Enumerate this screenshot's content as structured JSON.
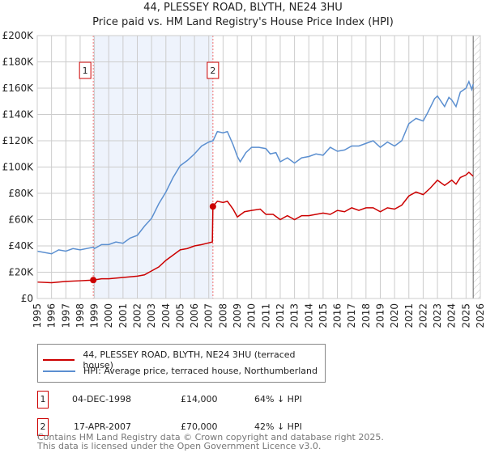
{
  "title": "44, PLESSEY ROAD, BLYTH, NE24 3HU",
  "subtitle": "Price paid vs. HM Land Registry's House Price Index (HPI)",
  "chart_data": {
    "type": "line",
    "xlim": [
      1995,
      2026
    ],
    "ylim": [
      0,
      200000
    ],
    "yticks": [
      0,
      20000,
      40000,
      60000,
      80000,
      100000,
      120000,
      140000,
      160000,
      180000,
      200000
    ],
    "ytick_labels": [
      "£0",
      "£20K",
      "£40K",
      "£60K",
      "£80K",
      "£100K",
      "£120K",
      "£140K",
      "£160K",
      "£180K",
      "£200K"
    ],
    "xticks": [
      1995,
      1996,
      1997,
      1998,
      1999,
      2000,
      2001,
      2002,
      2003,
      2004,
      2005,
      2006,
      2007,
      2008,
      2009,
      2010,
      2011,
      2012,
      2013,
      2014,
      2015,
      2016,
      2017,
      2018,
      2019,
      2020,
      2021,
      2022,
      2023,
      2024,
      2025,
      2026
    ],
    "grid": true,
    "shaded_period": [
      1998.92,
      2007.29
    ],
    "forecast_hatch_from": 2025.5,
    "colors": {
      "property": "#cc0000",
      "hpi": "#5b8fd0",
      "shade": "#eef3fc",
      "marker_box": "#cc0000"
    },
    "series": [
      {
        "name": "44, PLESSEY ROAD, BLYTH, NE24 3HU (terraced house)",
        "color": "#cc0000",
        "points": [
          [
            1995,
            12500
          ],
          [
            1996,
            12000
          ],
          [
            1997,
            13000
          ],
          [
            1998,
            13500
          ],
          [
            1998.92,
            14000
          ],
          [
            1999.5,
            15000
          ],
          [
            2000,
            15000
          ],
          [
            2001,
            16000
          ],
          [
            2002,
            17000
          ],
          [
            2002.5,
            18000
          ],
          [
            2003,
            21000
          ],
          [
            2003.5,
            24000
          ],
          [
            2004,
            29000
          ],
          [
            2004.5,
            33000
          ],
          [
            2005,
            37000
          ],
          [
            2005.5,
            38000
          ],
          [
            2006,
            40000
          ],
          [
            2006.5,
            41000
          ],
          [
            2007.25,
            43000
          ],
          [
            2007.29,
            70000
          ],
          [
            2007.6,
            74000
          ],
          [
            2008,
            73000
          ],
          [
            2008.3,
            74000
          ],
          [
            2008.7,
            68000
          ],
          [
            2009,
            62000
          ],
          [
            2009.5,
            66000
          ],
          [
            2010,
            67000
          ],
          [
            2010.6,
            68000
          ],
          [
            2011,
            64000
          ],
          [
            2011.5,
            64000
          ],
          [
            2012,
            60000
          ],
          [
            2012.5,
            63000
          ],
          [
            2013,
            60000
          ],
          [
            2013.5,
            63000
          ],
          [
            2014,
            63000
          ],
          [
            2015,
            65000
          ],
          [
            2015.5,
            64000
          ],
          [
            2016,
            67000
          ],
          [
            2016.5,
            66000
          ],
          [
            2017,
            69000
          ],
          [
            2017.5,
            67000
          ],
          [
            2018,
            69000
          ],
          [
            2018.5,
            69000
          ],
          [
            2019,
            66000
          ],
          [
            2019.5,
            69000
          ],
          [
            2020,
            68000
          ],
          [
            2020.5,
            71000
          ],
          [
            2021,
            78000
          ],
          [
            2021.5,
            81000
          ],
          [
            2022,
            79000
          ],
          [
            2022.5,
            84000
          ],
          [
            2023,
            90000
          ],
          [
            2023.5,
            86000
          ],
          [
            2024,
            90000
          ],
          [
            2024.3,
            87000
          ],
          [
            2024.6,
            92000
          ],
          [
            2025,
            94000
          ],
          [
            2025.2,
            96000
          ],
          [
            2025.5,
            93000
          ]
        ]
      },
      {
        "name": "HPI: Average price, terraced house, Northumberland",
        "color": "#5b8fd0",
        "points": [
          [
            1995,
            36000
          ],
          [
            1996,
            34000
          ],
          [
            1996.5,
            37000
          ],
          [
            1997,
            36000
          ],
          [
            1997.5,
            38000
          ],
          [
            1998,
            37000
          ],
          [
            1998.9,
            39000
          ],
          [
            1999,
            38000
          ],
          [
            1999.5,
            41000
          ],
          [
            2000,
            41000
          ],
          [
            2000.5,
            43000
          ],
          [
            2001,
            42000
          ],
          [
            2001.5,
            46000
          ],
          [
            2002,
            48000
          ],
          [
            2002.5,
            55000
          ],
          [
            2003,
            61000
          ],
          [
            2003.5,
            72000
          ],
          [
            2004,
            81000
          ],
          [
            2004.5,
            92000
          ],
          [
            2005,
            101000
          ],
          [
            2005.5,
            105000
          ],
          [
            2006,
            110000
          ],
          [
            2006.5,
            116000
          ],
          [
            2007,
            119000
          ],
          [
            2007.3,
            120000
          ],
          [
            2007.6,
            127000
          ],
          [
            2008,
            126000
          ],
          [
            2008.3,
            127000
          ],
          [
            2008.7,
            117000
          ],
          [
            2009,
            108000
          ],
          [
            2009.2,
            104000
          ],
          [
            2009.6,
            111000
          ],
          [
            2010,
            115000
          ],
          [
            2010.5,
            115000
          ],
          [
            2011,
            114000
          ],
          [
            2011.3,
            110000
          ],
          [
            2011.7,
            111000
          ],
          [
            2012,
            104000
          ],
          [
            2012.5,
            107000
          ],
          [
            2013,
            103000
          ],
          [
            2013.5,
            107000
          ],
          [
            2014,
            108000
          ],
          [
            2014.5,
            110000
          ],
          [
            2015,
            109000
          ],
          [
            2015.5,
            115000
          ],
          [
            2016,
            112000
          ],
          [
            2016.5,
            113000
          ],
          [
            2017,
            116000
          ],
          [
            2017.5,
            116000
          ],
          [
            2018,
            118000
          ],
          [
            2018.5,
            120000
          ],
          [
            2019,
            115000
          ],
          [
            2019.5,
            119000
          ],
          [
            2020,
            116000
          ],
          [
            2020.5,
            120000
          ],
          [
            2021,
            133000
          ],
          [
            2021.5,
            137000
          ],
          [
            2022,
            135000
          ],
          [
            2022.3,
            141000
          ],
          [
            2022.8,
            152000
          ],
          [
            2023,
            154000
          ],
          [
            2023.5,
            146000
          ],
          [
            2023.8,
            153000
          ],
          [
            2024,
            151000
          ],
          [
            2024.3,
            146000
          ],
          [
            2024.6,
            157000
          ],
          [
            2025,
            160000
          ],
          [
            2025.2,
            165000
          ],
          [
            2025.4,
            159000
          ],
          [
            2025.5,
            163000
          ]
        ]
      }
    ],
    "annotations": [
      {
        "label": "1",
        "x": 1998.92,
        "y": 14000
      },
      {
        "label": "2",
        "x": 2007.29,
        "y": 70000
      }
    ]
  },
  "transactions": [
    {
      "num": "1",
      "date": "04-DEC-1998",
      "price": "£14,000",
      "hpi": "64% ↓ HPI"
    },
    {
      "num": "2",
      "date": "17-APR-2007",
      "price": "£70,000",
      "hpi": "42% ↓ HPI"
    }
  ],
  "footer": [
    "Contains HM Land Registry data © Crown copyright and database right 2025.",
    "This data is licensed under the Open Government Licence v3.0."
  ]
}
